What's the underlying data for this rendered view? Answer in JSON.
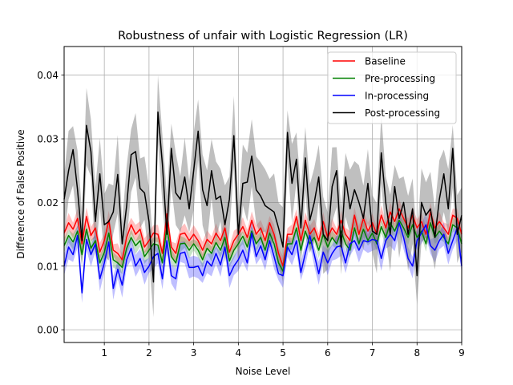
{
  "chart_data": {
    "type": "line",
    "title": "Robustness of unfair with Logistic Regression (LR)",
    "xlabel": "Noise Level",
    "ylabel": "Difference of False Positive",
    "xlim": [
      0.1,
      9.0
    ],
    "ylim": [
      -0.002,
      0.0445
    ],
    "xticks": [
      1,
      2,
      3,
      4,
      5,
      6,
      7,
      8,
      9
    ],
    "yticks": [
      0.0,
      0.01,
      0.02,
      0.03,
      0.04
    ],
    "ytick_labels": [
      "0.00",
      "0.01",
      "0.02",
      "0.03",
      "0.04"
    ],
    "grid": true,
    "legend_position": "top-right",
    "x": [
      0.1,
      0.2,
      0.3,
      0.4,
      0.5,
      0.6,
      0.7,
      0.8,
      0.9,
      1.0,
      1.1,
      1.2,
      1.3,
      1.4,
      1.5,
      1.6,
      1.7,
      1.8,
      1.9,
      2.0,
      2.1,
      2.2,
      2.3,
      2.4,
      2.5,
      2.6,
      2.7,
      2.8,
      2.9,
      3.0,
      3.1,
      3.2,
      3.3,
      3.4,
      3.5,
      3.6,
      3.7,
      3.8,
      3.9,
      4.0,
      4.1,
      4.2,
      4.3,
      4.4,
      4.5,
      4.6,
      4.7,
      4.8,
      4.9,
      5.0,
      5.1,
      5.2,
      5.3,
      5.4,
      5.5,
      5.6,
      5.7,
      5.8,
      5.9,
      6.0,
      6.1,
      6.2,
      6.3,
      6.4,
      6.5,
      6.6,
      6.7,
      6.8,
      6.9,
      7.0,
      7.1,
      7.2,
      7.3,
      7.4,
      7.5,
      7.6,
      7.7,
      7.8,
      7.9,
      8.0,
      8.1,
      8.2,
      8.3,
      8.4,
      8.5,
      8.6,
      8.7,
      8.8,
      8.9,
      9.0
    ],
    "series": [
      {
        "name": "Baseline",
        "color": "#ff0000",
        "band_color": "#ff0000",
        "band_opacity": 0.25,
        "band_halfwidth": 0.0012,
        "values": [
          0.0152,
          0.0168,
          0.0158,
          0.0175,
          0.0135,
          0.0178,
          0.0148,
          0.016,
          0.0122,
          0.014,
          0.0172,
          0.0125,
          0.012,
          0.011,
          0.0145,
          0.0165,
          0.015,
          0.0158,
          0.013,
          0.014,
          0.0152,
          0.015,
          0.012,
          0.0182,
          0.013,
          0.012,
          0.015,
          0.0152,
          0.014,
          0.015,
          0.014,
          0.0125,
          0.0142,
          0.0135,
          0.0152,
          0.014,
          0.016,
          0.0122,
          0.014,
          0.015,
          0.0162,
          0.0145,
          0.0172,
          0.015,
          0.016,
          0.014,
          0.0168,
          0.015,
          0.012,
          0.01,
          0.015,
          0.015,
          0.0178,
          0.014,
          0.0172,
          0.015,
          0.016,
          0.014,
          0.017,
          0.0145,
          0.016,
          0.015,
          0.0172,
          0.015,
          0.014,
          0.018,
          0.015,
          0.0175,
          0.0155,
          0.0168,
          0.015,
          0.018,
          0.016,
          0.0185,
          0.017,
          0.019,
          0.0175,
          0.016,
          0.018,
          0.016,
          0.017,
          0.015,
          0.0185,
          0.016,
          0.017,
          0.016,
          0.015,
          0.018,
          0.0175,
          0.015
        ]
      },
      {
        "name": "Pre-processing",
        "color": "#008000",
        "band_color": "#008000",
        "band_opacity": 0.22,
        "band_halfwidth": 0.001,
        "values": [
          0.0132,
          0.0148,
          0.0138,
          0.0155,
          0.0118,
          0.0158,
          0.0128,
          0.014,
          0.0105,
          0.0122,
          0.0152,
          0.011,
          0.0105,
          0.0098,
          0.0128,
          0.0145,
          0.0132,
          0.014,
          0.0115,
          0.0125,
          0.0135,
          0.0133,
          0.0105,
          0.0162,
          0.0115,
          0.0105,
          0.0135,
          0.0136,
          0.0125,
          0.0135,
          0.0125,
          0.011,
          0.0128,
          0.012,
          0.0137,
          0.0125,
          0.0145,
          0.0108,
          0.0125,
          0.0135,
          0.0147,
          0.013,
          0.0155,
          0.0135,
          0.0145,
          0.0125,
          0.0152,
          0.0135,
          0.0105,
          0.0092,
          0.0135,
          0.0135,
          0.016,
          0.0125,
          0.0155,
          0.0135,
          0.0145,
          0.0125,
          0.015,
          0.013,
          0.0145,
          0.0135,
          0.0155,
          0.0135,
          0.0125,
          0.016,
          0.0135,
          0.0158,
          0.014,
          0.0152,
          0.0135,
          0.0162,
          0.0145,
          0.0168,
          0.0155,
          0.0172,
          0.016,
          0.0145,
          0.0165,
          0.0145,
          0.0155,
          0.0135,
          0.0168,
          0.0145,
          0.0155,
          0.0145,
          0.0135,
          0.0165,
          0.016,
          0.0135
        ]
      },
      {
        "name": "In-processing",
        "color": "#0000ff",
        "band_color": "#0000ff",
        "band_opacity": 0.25,
        "band_halfwidth": 0.0015,
        "values": [
          0.01,
          0.013,
          0.0118,
          0.0148,
          0.0058,
          0.0142,
          0.0118,
          0.0135,
          0.008,
          0.0105,
          0.0138,
          0.0065,
          0.0095,
          0.007,
          0.011,
          0.0128,
          0.01,
          0.0112,
          0.009,
          0.01,
          0.0115,
          0.012,
          0.008,
          0.014,
          0.0085,
          0.008,
          0.012,
          0.0122,
          0.0098,
          0.0098,
          0.01,
          0.0085,
          0.0108,
          0.01,
          0.012,
          0.0102,
          0.013,
          0.0085,
          0.01,
          0.011,
          0.0125,
          0.0105,
          0.0152,
          0.0115,
          0.0132,
          0.011,
          0.014,
          0.0115,
          0.0088,
          0.0085,
          0.013,
          0.0118,
          0.014,
          0.009,
          0.012,
          0.0148,
          0.0118,
          0.0088,
          0.0122,
          0.0105,
          0.012,
          0.013,
          0.0132,
          0.0105,
          0.0135,
          0.014,
          0.0125,
          0.014,
          0.0138,
          0.0142,
          0.014,
          0.0112,
          0.014,
          0.015,
          0.014,
          0.0168,
          0.0145,
          0.0112,
          0.01,
          0.014,
          0.0152,
          0.0165,
          0.0132,
          0.0125,
          0.014,
          0.015,
          0.012,
          0.014,
          0.016,
          0.01
        ]
      },
      {
        "name": "Post-processing",
        "color": "#000000",
        "band_color": "#808080",
        "band_opacity": 0.5,
        "band_halfwidth": 0.0048,
        "values": [
          0.0205,
          0.025,
          0.0283,
          0.022,
          0.014,
          0.0321,
          0.028,
          0.017,
          0.0245,
          0.0165,
          0.017,
          0.0185,
          0.0244,
          0.0135,
          0.0195,
          0.0275,
          0.028,
          0.0222,
          0.0215,
          0.017,
          0.0075,
          0.0342,
          0.026,
          0.015,
          0.0285,
          0.0215,
          0.0205,
          0.024,
          0.019,
          0.025,
          0.0312,
          0.022,
          0.0195,
          0.025,
          0.0205,
          0.021,
          0.0165,
          0.0205,
          0.0305,
          0.015,
          0.023,
          0.0232,
          0.0273,
          0.022,
          0.021,
          0.0195,
          0.019,
          0.0185,
          0.016,
          0.013,
          0.031,
          0.023,
          0.0268,
          0.016,
          0.027,
          0.0172,
          0.02,
          0.024,
          0.015,
          0.014,
          0.0225,
          0.025,
          0.013,
          0.024,
          0.019,
          0.022,
          0.02,
          0.0175,
          0.023,
          0.0155,
          0.015,
          0.0278,
          0.02,
          0.015,
          0.0225,
          0.0175,
          0.02,
          0.015,
          0.019,
          0.0085,
          0.02,
          0.018,
          0.019,
          0.0145,
          0.0205,
          0.0245,
          0.019,
          0.0285,
          0.015,
          0.018
        ]
      }
    ]
  }
}
